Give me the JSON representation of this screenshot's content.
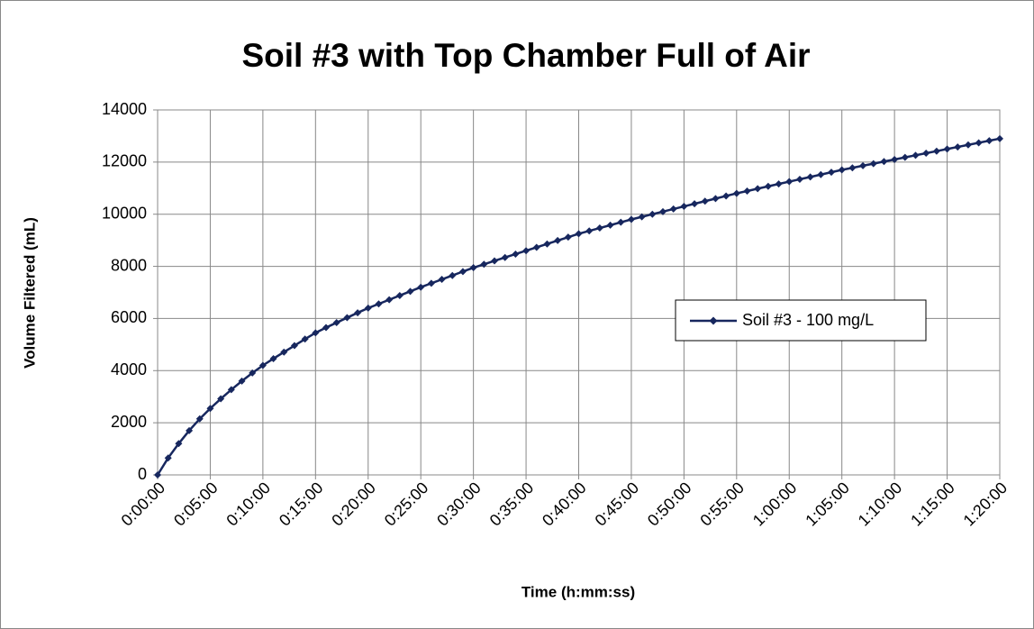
{
  "chart_data": {
    "type": "line",
    "title": "Soil #3 with Top Chamber Full of Air",
    "xlabel": "Time (h:mm:ss)",
    "ylabel": "Volume Filtered (mL)",
    "x": [
      0,
      60,
      120,
      180,
      240,
      300,
      360,
      420,
      480,
      540,
      600,
      660,
      720,
      780,
      840,
      900,
      960,
      1020,
      1080,
      1140,
      1200,
      1260,
      1320,
      1380,
      1440,
      1500,
      1560,
      1620,
      1680,
      1740,
      1800,
      1860,
      1920,
      1980,
      2040,
      2100,
      2160,
      2220,
      2280,
      2340,
      2400,
      2460,
      2520,
      2580,
      2640,
      2700,
      2760,
      2820,
      2880,
      2940,
      3000,
      3060,
      3120,
      3180,
      3240,
      3300,
      3360,
      3420,
      3480,
      3540,
      3600,
      3660,
      3720,
      3780,
      3840,
      3900,
      3960,
      4020,
      4080,
      4140,
      4200,
      4260,
      4320,
      4380,
      4440,
      4500,
      4560,
      4620,
      4680,
      4740,
      4800
    ],
    "series": [
      {
        "name": "Soil #3 - 100 mg/L",
        "color": "#17275e",
        "values": [
          0,
          650,
          1200,
          1700,
          2150,
          2550,
          2920,
          3270,
          3600,
          3910,
          4200,
          4460,
          4710,
          4960,
          5210,
          5450,
          5650,
          5840,
          6030,
          6220,
          6400,
          6560,
          6720,
          6880,
          7040,
          7200,
          7350,
          7500,
          7650,
          7800,
          7950,
          8080,
          8210,
          8340,
          8470,
          8600,
          8730,
          8860,
          8990,
          9120,
          9250,
          9360,
          9470,
          9580,
          9690,
          9800,
          9900,
          10000,
          10100,
          10200,
          10300,
          10400,
          10500,
          10600,
          10700,
          10800,
          10890,
          10980,
          11070,
          11160,
          11250,
          11340,
          11430,
          11520,
          11610,
          11700,
          11780,
          11860,
          11940,
          12020,
          12100,
          12180,
          12260,
          12340,
          12420,
          12500,
          12580,
          12660,
          12740,
          12820,
          12900
        ]
      }
    ],
    "xlim": [
      0,
      4800
    ],
    "xticks": [
      {
        "value": 0,
        "label": "0:00:00"
      },
      {
        "value": 300,
        "label": "0:05:00"
      },
      {
        "value": 600,
        "label": "0:10:00"
      },
      {
        "value": 900,
        "label": "0:15:00"
      },
      {
        "value": 1200,
        "label": "0:20:00"
      },
      {
        "value": 1500,
        "label": "0:25:00"
      },
      {
        "value": 1800,
        "label": "0:30:00"
      },
      {
        "value": 2100,
        "label": "0:35:00"
      },
      {
        "value": 2400,
        "label": "0:40:00"
      },
      {
        "value": 2700,
        "label": "0:45:00"
      },
      {
        "value": 3000,
        "label": "0:50:00"
      },
      {
        "value": 3300,
        "label": "0:55:00"
      },
      {
        "value": 3600,
        "label": "1:00:00"
      },
      {
        "value": 3900,
        "label": "1:05:00"
      },
      {
        "value": 4200,
        "label": "1:10:00"
      },
      {
        "value": 4500,
        "label": "1:15:00"
      },
      {
        "value": 4800,
        "label": "1:20:00"
      }
    ],
    "ylim": [
      0,
      14000
    ],
    "yticks": [
      0,
      2000,
      4000,
      6000,
      8000,
      10000,
      12000,
      14000
    ],
    "grid": true,
    "legend": "right"
  }
}
